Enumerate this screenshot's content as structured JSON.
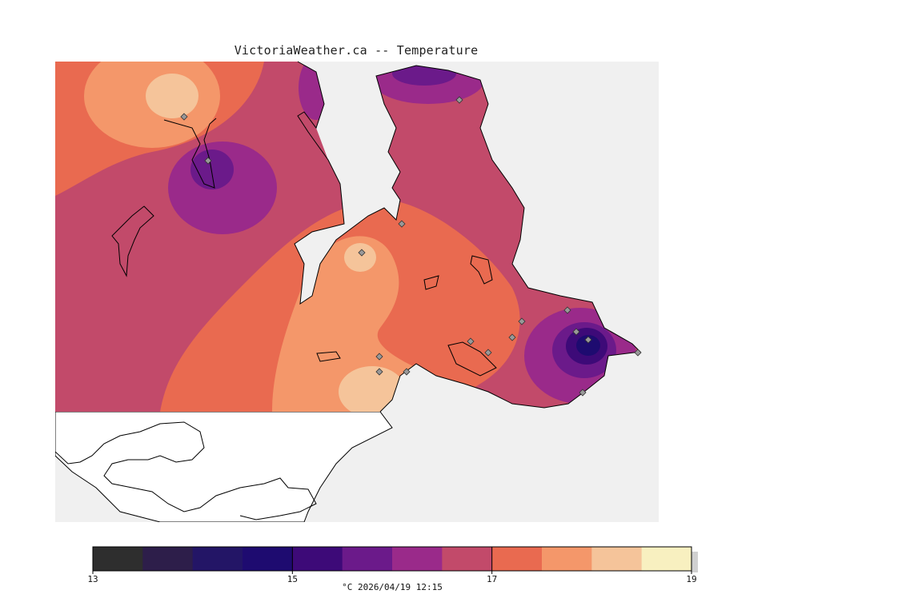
{
  "title": "VictoriaWeather.ca -- Temperature",
  "legend": {
    "unit_caption": "°C  2026/04/19 12:15",
    "ticks": [
      "13",
      "15",
      "17",
      "19"
    ],
    "tick_values": [
      13,
      15,
      17,
      19
    ],
    "min": 13,
    "max": 19,
    "colors": [
      "#2e2e2e",
      "#2d1e4a",
      "#231566",
      "#1e0b70",
      "#3d0a78",
      "#6b1a8a",
      "#9a2a8a",
      "#c24a6a",
      "#e96a50",
      "#f4976a",
      "#f5c49a",
      "#f8f0c0"
    ]
  },
  "map": {
    "background_color": "#f0f0f0",
    "land_outline_color": "#000000",
    "station_marker_color": "#999999"
  }
}
